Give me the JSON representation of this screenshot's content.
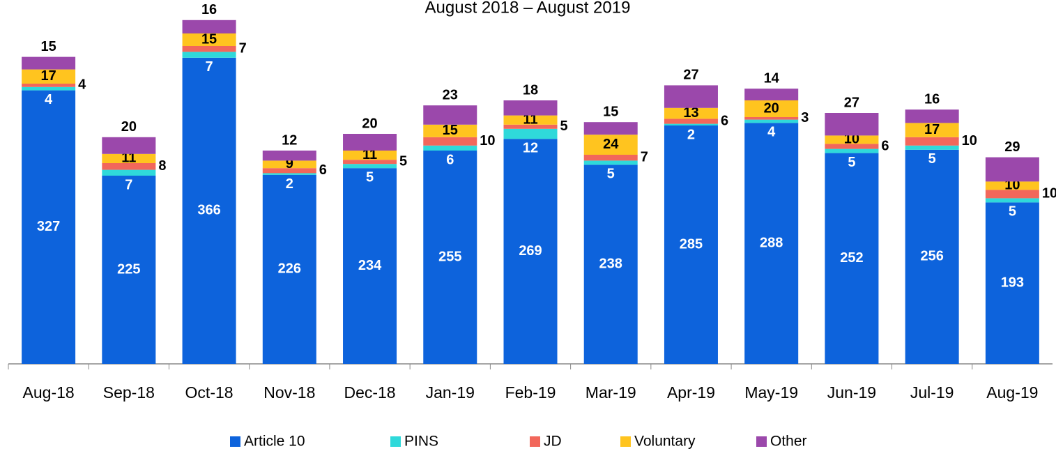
{
  "chart_data": {
    "type": "stacked_bar",
    "title": "August 2018 –  August 2019",
    "categories": [
      "Aug-18",
      "Sep-18",
      "Oct-18",
      "Nov-18",
      "Dec-18",
      "Jan-19",
      "Feb-19",
      "Mar-19",
      "Apr-19",
      "May-19",
      "Jun-19",
      "Jul-19",
      "Aug-19"
    ],
    "series": [
      {
        "name": "Article 10",
        "color": "#0d63dc",
        "values": [
          327,
          225,
          366,
          226,
          234,
          255,
          269,
          238,
          285,
          288,
          252,
          256,
          193
        ]
      },
      {
        "name": "PINS",
        "color": "#2fd9da",
        "values": [
          4,
          7,
          7,
          2,
          5,
          6,
          12,
          5,
          2,
          4,
          5,
          5,
          5
        ]
      },
      {
        "name": "JD",
        "color": "#f2675b",
        "values": [
          4,
          8,
          7,
          6,
          5,
          10,
          5,
          7,
          6,
          3,
          6,
          10,
          10
        ]
      },
      {
        "name": "Voluntary",
        "color": "#ffc41f",
        "values": [
          17,
          11,
          15,
          9,
          11,
          15,
          11,
          24,
          13,
          20,
          10,
          17,
          10
        ]
      },
      {
        "name": "Other",
        "color": "#9b48ab",
        "values": [
          15,
          20,
          16,
          12,
          20,
          23,
          18,
          15,
          27,
          14,
          27,
          16,
          29
        ]
      }
    ],
    "ylim": [
      0,
      435
    ]
  }
}
